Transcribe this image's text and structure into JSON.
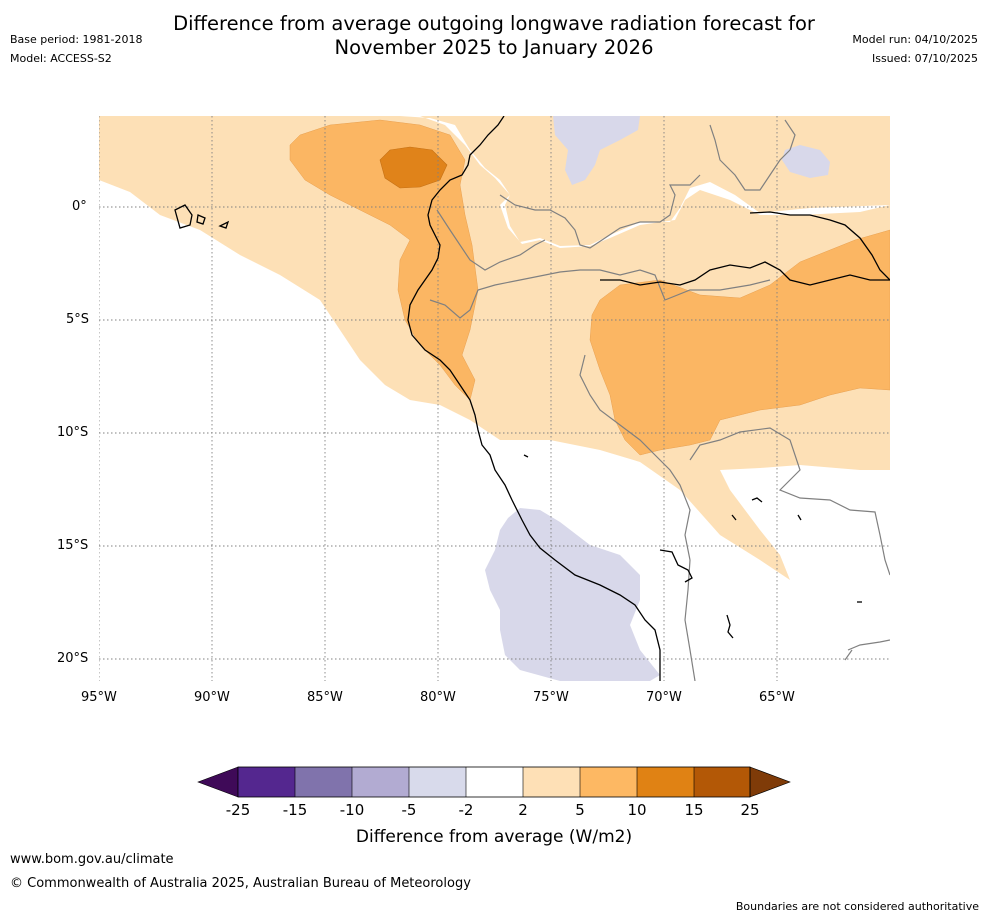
{
  "title": {
    "line1": "Difference from average outgoing longwave radiation forecast for",
    "line2": "November 2025 to January 2026"
  },
  "meta": {
    "base_period": "Base period: 1981-2018",
    "model": "Model: ACCESS-S2",
    "model_run": "Model run: 04/10/2025",
    "issued": "Issued: 07/10/2025"
  },
  "map": {
    "lat_labels": [
      "0°",
      "5°S",
      "10°S",
      "15°S",
      "20°S"
    ],
    "lon_labels": [
      "95°W",
      "90°W",
      "85°W",
      "80°W",
      "75°W",
      "70°W",
      "65°W"
    ],
    "colors": {
      "ocean": "#ffffff",
      "light_orange": "#fde0b6",
      "mid_orange": "#fbb663",
      "dark_orange": "#e0831a",
      "light_purple": "#d8d8ea",
      "coast": "#000000",
      "border": "#808080",
      "grid": "#808080"
    }
  },
  "colorbar": {
    "title": "Difference from average (W/m2)",
    "labels": [
      "-25",
      "-15",
      "-10",
      "-5",
      "-2",
      "2",
      "5",
      "10",
      "15",
      "25"
    ],
    "colors": [
      "#3f0a58",
      "#54278f",
      "#8073ac",
      "#b2abd2",
      "#d8daeb",
      "#ffffff",
      "#fee0b6",
      "#fdb863",
      "#e08214",
      "#b35806",
      "#7f3b08"
    ]
  },
  "footer": {
    "website": "www.bom.gov.au/climate",
    "copyright": "© Commonwealth of Australia 2025, Australian Bureau of Meteorology",
    "disclaimer": "Boundaries are not considered authoritative"
  }
}
